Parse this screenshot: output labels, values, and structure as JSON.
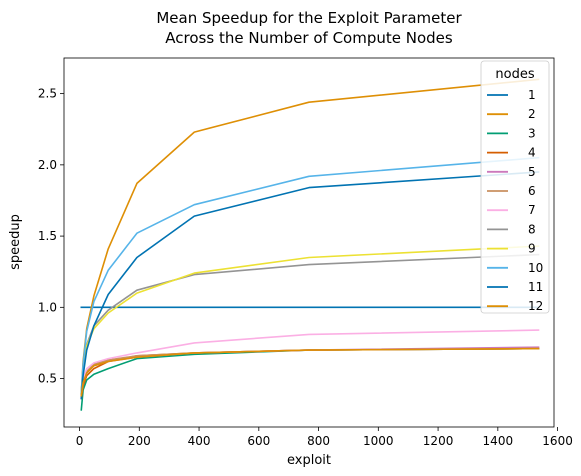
{
  "chart_data": {
    "type": "line",
    "title": [
      "Mean Speedup for the Exploit Parameter",
      "Across the Number of Compute Nodes"
    ],
    "xlabel": "exploit",
    "ylabel": "speedup",
    "xlim": [
      -52,
      1588
    ],
    "ylim": [
      0.16,
      2.75
    ],
    "xticks": [
      0,
      200,
      400,
      600,
      800,
      1000,
      1200,
      1400,
      1600
    ],
    "yticks": [
      0.5,
      1.0,
      1.5,
      2.0,
      2.5
    ],
    "ytick_labels": [
      "0.5",
      "1.0",
      "1.5",
      "2.0",
      "2.5"
    ],
    "grid": false,
    "legend": {
      "title": "nodes",
      "placement": "top-right"
    },
    "x": [
      6,
      12,
      24,
      48,
      96,
      192,
      384,
      768,
      1536
    ],
    "series": [
      {
        "name": "1",
        "color": "#0173b2",
        "values": [
          1.0,
          1.0,
          1.0,
          1.0,
          1.0,
          1.0,
          1.0,
          1.0,
          1.0
        ]
      },
      {
        "name": "2",
        "color": "#de8f05",
        "values": [
          0.4,
          0.62,
          0.85,
          1.08,
          1.41,
          1.87,
          2.23,
          2.44,
          2.6
        ]
      },
      {
        "name": "3",
        "color": "#029e73",
        "values": [
          0.28,
          0.42,
          0.49,
          0.53,
          0.57,
          0.64,
          0.67,
          0.7,
          0.71
        ]
      },
      {
        "name": "4",
        "color": "#d55e00",
        "values": [
          0.36,
          0.45,
          0.52,
          0.57,
          0.62,
          0.66,
          0.68,
          0.7,
          0.71
        ]
      },
      {
        "name": "5",
        "color": "#cc78bc",
        "values": [
          0.38,
          0.47,
          0.54,
          0.59,
          0.62,
          0.65,
          0.68,
          0.7,
          0.72
        ]
      },
      {
        "name": "6",
        "color": "#ca9161",
        "values": [
          0.39,
          0.48,
          0.55,
          0.6,
          0.63,
          0.66,
          0.68,
          0.7,
          0.71
        ]
      },
      {
        "name": "7",
        "color": "#fbafe4",
        "values": [
          0.4,
          0.5,
          0.57,
          0.61,
          0.64,
          0.68,
          0.75,
          0.81,
          0.84
        ]
      },
      {
        "name": "8",
        "color": "#949494",
        "values": [
          0.4,
          0.58,
          0.74,
          0.87,
          0.98,
          1.12,
          1.23,
          1.3,
          1.37
        ]
      },
      {
        "name": "9",
        "color": "#ece133",
        "values": [
          0.4,
          0.58,
          0.73,
          0.85,
          0.96,
          1.1,
          1.24,
          1.35,
          1.43
        ]
      },
      {
        "name": "10",
        "color": "#56b4e9",
        "values": [
          0.4,
          0.6,
          0.83,
          1.04,
          1.26,
          1.52,
          1.72,
          1.92,
          2.05
        ]
      },
      {
        "name": "11",
        "color": "#0173b2",
        "values": [
          0.36,
          0.52,
          0.7,
          0.87,
          1.09,
          1.35,
          1.64,
          1.84,
          1.95
        ]
      },
      {
        "name": "12",
        "color": "#de8f05",
        "values": [
          0.38,
          0.47,
          0.54,
          0.59,
          0.62,
          0.65,
          0.68,
          0.7,
          0.71
        ]
      }
    ]
  }
}
